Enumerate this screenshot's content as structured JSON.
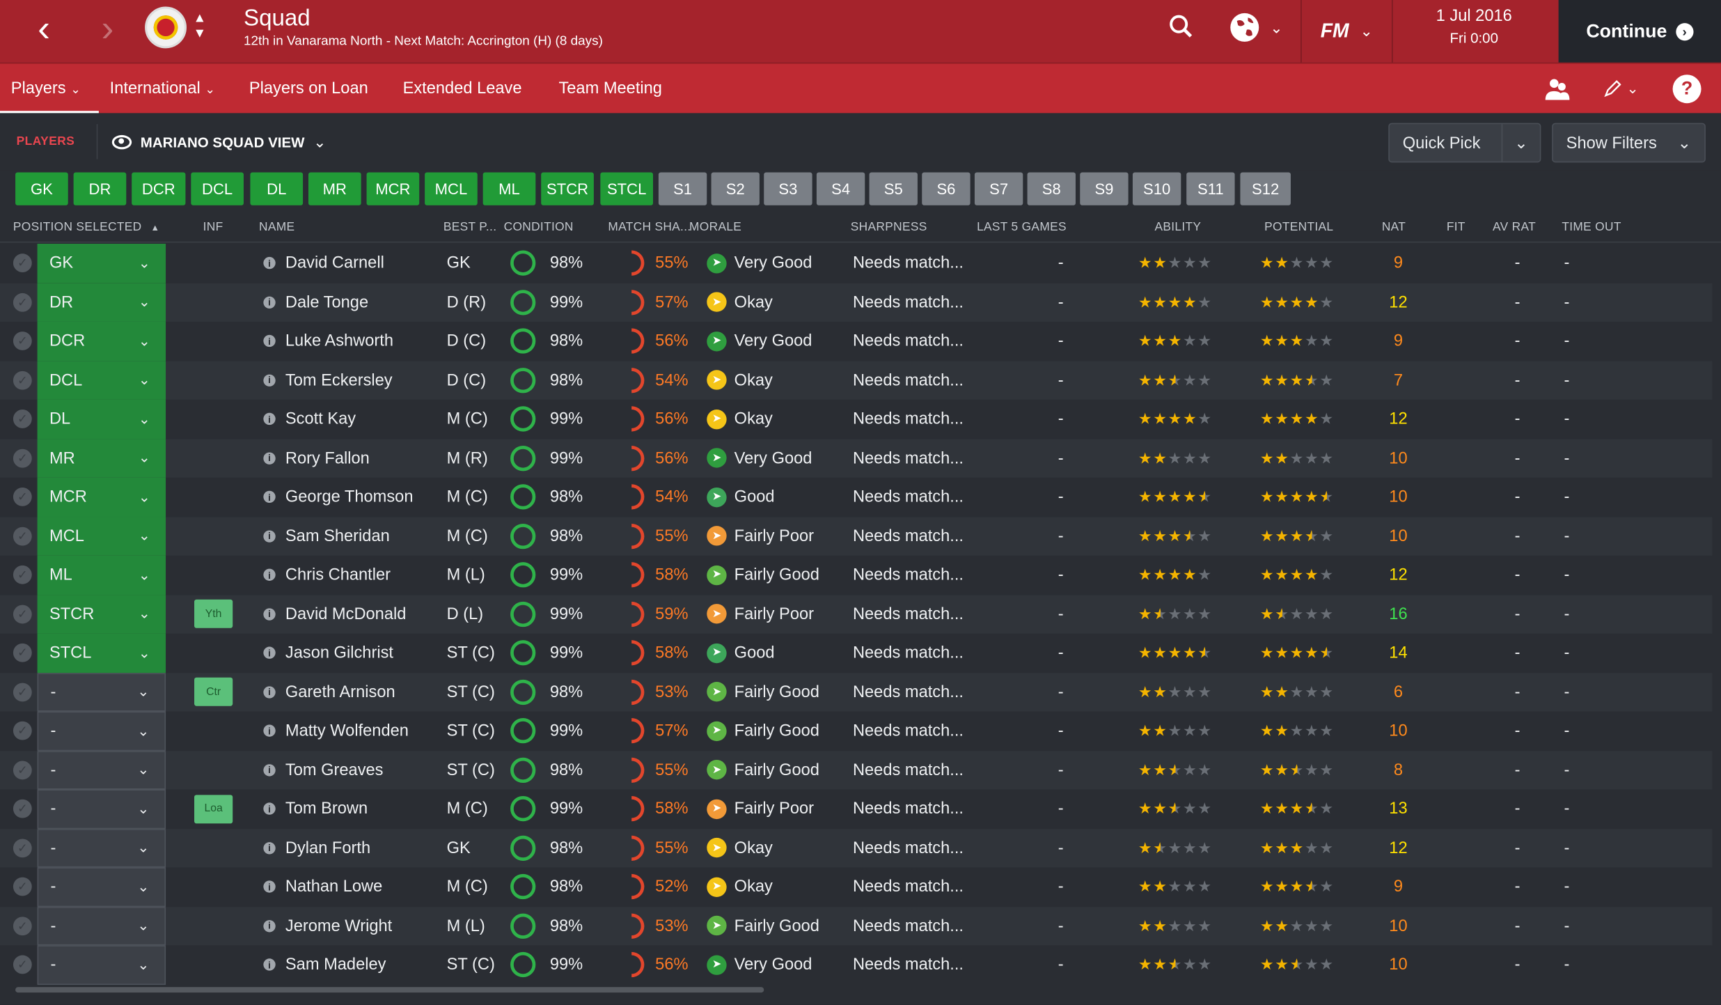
{
  "header": {
    "title": "Squad",
    "subtitle": "12th in Vanarama North - Next Match: Accrington (H) (8 days)",
    "date_line1": "1 Jul 2016",
    "date_line2": "Fri 0:00",
    "continue_label": "Continue",
    "fm_logo": "FM"
  },
  "nav": {
    "items": [
      "Players",
      "International",
      "Players on Loan",
      "Extended Leave",
      "Team Meeting"
    ]
  },
  "toolbar": {
    "section_label": "PLAYERS",
    "view_label": "MARIANO SQUAD VIEW",
    "quick_pick": "Quick Pick",
    "show_filters": "Show Filters"
  },
  "position_buttons": [
    "GK",
    "DR",
    "DCR",
    "DCL",
    "DL",
    "MR",
    "MCR",
    "MCL",
    "ML",
    "STCR",
    "STCL",
    "S1",
    "S2",
    "S3",
    "S4",
    "S5",
    "S6",
    "S7",
    "S8",
    "S9",
    "S10",
    "S11",
    "S12"
  ],
  "columns": {
    "position": "POSITION SELECTED",
    "inf": "INF",
    "name": "NAME",
    "best": "BEST P...",
    "condition": "CONDITION",
    "match_sharpness": "MATCH SHA...",
    "morale": "MORALE",
    "sharpness": "SHARPNESS",
    "last5": "LAST 5 GAMES",
    "ability": "ABILITY",
    "potential": "POTENTIAL",
    "nat": "NAT",
    "fit": "FIT",
    "av_rat": "AV RAT",
    "time_out": "TIME OUT"
  },
  "colors": {
    "morale_very_good": "#2f9e3f",
    "morale_good": "#3da65a",
    "morale_fairly_good": "#5eb545",
    "morale_okay": "#f5c518",
    "morale_fairly_poor": "#f29a38",
    "nat_orange": "#ff8a1c",
    "nat_yellow": "#ffe100",
    "nat_green": "#3fe24f"
  },
  "players": [
    {
      "pos": "GK",
      "inf": "",
      "name": "David Carnell",
      "best": "GK",
      "cond": "98%",
      "msh": "55%",
      "morale": "Very Good",
      "mcolor": "#2f9e3f",
      "sharp": "Needs match...",
      "last5": "-",
      "ability": 2,
      "potential": 2,
      "nat": "9",
      "natc": "#ff8a1c",
      "avr": "-",
      "tout": "-"
    },
    {
      "pos": "DR",
      "inf": "",
      "name": "Dale Tonge",
      "best": "D (R)",
      "cond": "99%",
      "msh": "57%",
      "morale": "Okay",
      "mcolor": "#f5c518",
      "sharp": "Needs match...",
      "last5": "-",
      "ability": 4,
      "potential": 4,
      "nat": "12",
      "natc": "#ffe100",
      "avr": "-",
      "tout": "-"
    },
    {
      "pos": "DCR",
      "inf": "",
      "name": "Luke Ashworth",
      "best": "D (C)",
      "cond": "98%",
      "msh": "56%",
      "morale": "Very Good",
      "mcolor": "#2f9e3f",
      "sharp": "Needs match...",
      "last5": "-",
      "ability": 3,
      "potential": 3,
      "nat": "9",
      "natc": "#ff8a1c",
      "avr": "-",
      "tout": "-"
    },
    {
      "pos": "DCL",
      "inf": "",
      "name": "Tom Eckersley",
      "best": "D (C)",
      "cond": "98%",
      "msh": "54%",
      "morale": "Okay",
      "mcolor": "#f5c518",
      "sharp": "Needs match...",
      "last5": "-",
      "ability": 2.5,
      "potential": 3.5,
      "nat": "7",
      "natc": "#ff8a1c",
      "avr": "-",
      "tout": "-"
    },
    {
      "pos": "DL",
      "inf": "",
      "name": "Scott Kay",
      "best": "M (C)",
      "cond": "99%",
      "msh": "56%",
      "morale": "Okay",
      "mcolor": "#f5c518",
      "sharp": "Needs match...",
      "last5": "-",
      "ability": 4,
      "potential": 4,
      "nat": "12",
      "natc": "#ffe100",
      "avr": "-",
      "tout": "-"
    },
    {
      "pos": "MR",
      "inf": "",
      "name": "Rory Fallon",
      "best": "M (R)",
      "cond": "99%",
      "msh": "56%",
      "morale": "Very Good",
      "mcolor": "#2f9e3f",
      "sharp": "Needs match...",
      "last5": "-",
      "ability": 2,
      "potential": 2,
      "nat": "10",
      "natc": "#ff8a1c",
      "avr": "-",
      "tout": "-"
    },
    {
      "pos": "MCR",
      "inf": "",
      "name": "George Thomson",
      "best": "M (C)",
      "cond": "98%",
      "msh": "54%",
      "morale": "Good",
      "mcolor": "#3da65a",
      "sharp": "Needs match...",
      "last5": "-",
      "ability": 4.5,
      "potential": 4.5,
      "nat": "10",
      "natc": "#ff8a1c",
      "avr": "-",
      "tout": "-"
    },
    {
      "pos": "MCL",
      "inf": "",
      "name": "Sam Sheridan",
      "best": "M (C)",
      "cond": "98%",
      "msh": "55%",
      "morale": "Fairly Poor",
      "mcolor": "#f29a38",
      "sharp": "Needs match...",
      "last5": "-",
      "ability": 3.5,
      "potential": 3.5,
      "nat": "10",
      "natc": "#ff8a1c",
      "avr": "-",
      "tout": "-"
    },
    {
      "pos": "ML",
      "inf": "",
      "name": "Chris Chantler",
      "best": "M (L)",
      "cond": "99%",
      "msh": "58%",
      "morale": "Fairly Good",
      "mcolor": "#5eb545",
      "sharp": "Needs match...",
      "last5": "-",
      "ability": 4,
      "potential": 4,
      "nat": "12",
      "natc": "#ffe100",
      "avr": "-",
      "tout": "-"
    },
    {
      "pos": "STCR",
      "inf": "Yth",
      "name": "David McDonald",
      "best": "D (L)",
      "cond": "99%",
      "msh": "59%",
      "morale": "Fairly Poor",
      "mcolor": "#f29a38",
      "sharp": "Needs match...",
      "last5": "-",
      "ability": 1.5,
      "potential": 1.5,
      "nat": "16",
      "natc": "#3fe24f",
      "avr": "-",
      "tout": "-"
    },
    {
      "pos": "STCL",
      "inf": "",
      "name": "Jason Gilchrist",
      "best": "ST (C)",
      "cond": "99%",
      "msh": "58%",
      "morale": "Good",
      "mcolor": "#3da65a",
      "sharp": "Needs match...",
      "last5": "-",
      "ability": 4.5,
      "potential": 4.5,
      "nat": "14",
      "natc": "#ffe100",
      "avr": "-",
      "tout": "-"
    },
    {
      "pos": "-",
      "inf": "Ctr",
      "name": "Gareth Arnison",
      "best": "ST (C)",
      "cond": "98%",
      "msh": "53%",
      "morale": "Fairly Good",
      "mcolor": "#5eb545",
      "sharp": "Needs match...",
      "last5": "-",
      "ability": 2,
      "potential": 2,
      "nat": "6",
      "natc": "#ff8a1c",
      "avr": "-",
      "tout": "-"
    },
    {
      "pos": "-",
      "inf": "",
      "name": "Matty Wolfenden",
      "best": "ST (C)",
      "cond": "99%",
      "msh": "57%",
      "morale": "Fairly Good",
      "mcolor": "#5eb545",
      "sharp": "Needs match...",
      "last5": "-",
      "ability": 2,
      "potential": 2,
      "nat": "10",
      "natc": "#ff8a1c",
      "avr": "-",
      "tout": "-"
    },
    {
      "pos": "-",
      "inf": "",
      "name": "Tom Greaves",
      "best": "ST (C)",
      "cond": "98%",
      "msh": "55%",
      "morale": "Fairly Good",
      "mcolor": "#5eb545",
      "sharp": "Needs match...",
      "last5": "-",
      "ability": 2.5,
      "potential": 2.5,
      "nat": "8",
      "natc": "#ff8a1c",
      "avr": "-",
      "tout": "-"
    },
    {
      "pos": "-",
      "inf": "Loa",
      "name": "Tom Brown",
      "best": "M (C)",
      "cond": "99%",
      "msh": "58%",
      "morale": "Fairly Poor",
      "mcolor": "#f29a38",
      "sharp": "Needs match...",
      "last5": "-",
      "ability": 2.5,
      "potential": 3.5,
      "nat": "13",
      "natc": "#ffe100",
      "avr": "-",
      "tout": "-"
    },
    {
      "pos": "-",
      "inf": "",
      "name": "Dylan Forth",
      "best": "GK",
      "cond": "98%",
      "msh": "55%",
      "morale": "Okay",
      "mcolor": "#f5c518",
      "sharp": "Needs match...",
      "last5": "-",
      "ability": 1.5,
      "potential": 3,
      "nat": "12",
      "natc": "#ffe100",
      "avr": "-",
      "tout": "-"
    },
    {
      "pos": "-",
      "inf": "",
      "name": "Nathan Lowe",
      "best": "M (C)",
      "cond": "98%",
      "msh": "52%",
      "morale": "Okay",
      "mcolor": "#f5c518",
      "sharp": "Needs match...",
      "last5": "-",
      "ability": 2,
      "potential": 3.5,
      "nat": "9",
      "natc": "#ff8a1c",
      "avr": "-",
      "tout": "-"
    },
    {
      "pos": "-",
      "inf": "",
      "name": "Jerome Wright",
      "best": "M (L)",
      "cond": "98%",
      "msh": "53%",
      "morale": "Fairly Good",
      "mcolor": "#5eb545",
      "sharp": "Needs match...",
      "last5": "-",
      "ability": 2,
      "potential": 2,
      "nat": "10",
      "natc": "#ff8a1c",
      "avr": "-",
      "tout": "-"
    },
    {
      "pos": "-",
      "inf": "",
      "name": "Sam Madeley",
      "best": "ST (C)",
      "cond": "99%",
      "msh": "56%",
      "morale": "Very Good",
      "mcolor": "#2f9e3f",
      "sharp": "Needs match...",
      "last5": "-",
      "ability": 2.5,
      "potential": 2.5,
      "nat": "10",
      "natc": "#ff8a1c",
      "avr": "-",
      "tout": "-"
    }
  ]
}
